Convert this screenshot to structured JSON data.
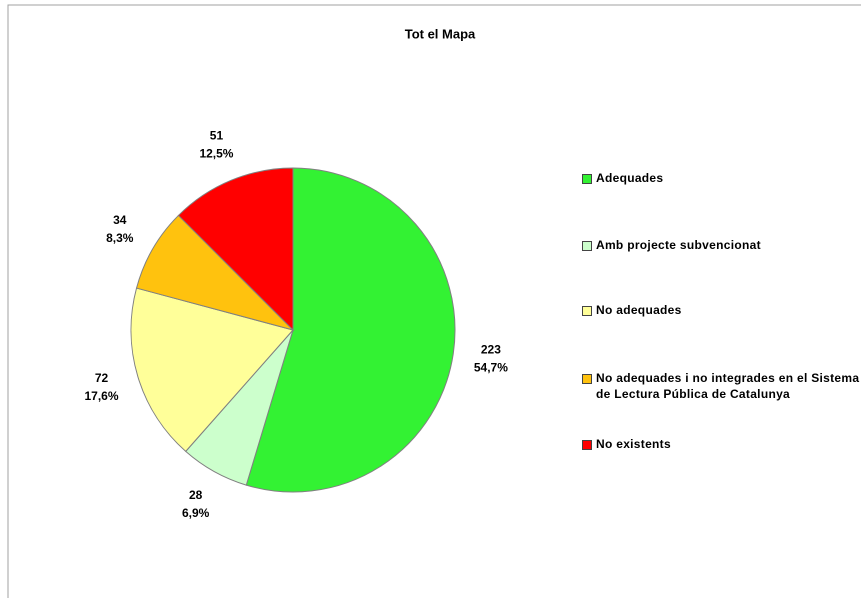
{
  "chart_data": {
    "type": "pie",
    "title": "Tot el Mapa",
    "categories": [
      "Adequades",
      "Amb projecte subvencionat",
      "No adequades",
      "No adequades i no integrades en el Sistema de Lectura Pública de Catalunya",
      "No existents"
    ],
    "values": [
      223,
      28,
      72,
      34,
      51
    ],
    "percentages": [
      54.7,
      6.9,
      17.6,
      8.3,
      12.5
    ],
    "percentage_labels": [
      "54,7%",
      "6,9%",
      "17,6%",
      "8,3%",
      "12,5%"
    ],
    "colors": [
      "#33f233",
      "#ccffcc",
      "#ffff99",
      "#ffc20e",
      "#ff0000"
    ],
    "legend": "right"
  }
}
